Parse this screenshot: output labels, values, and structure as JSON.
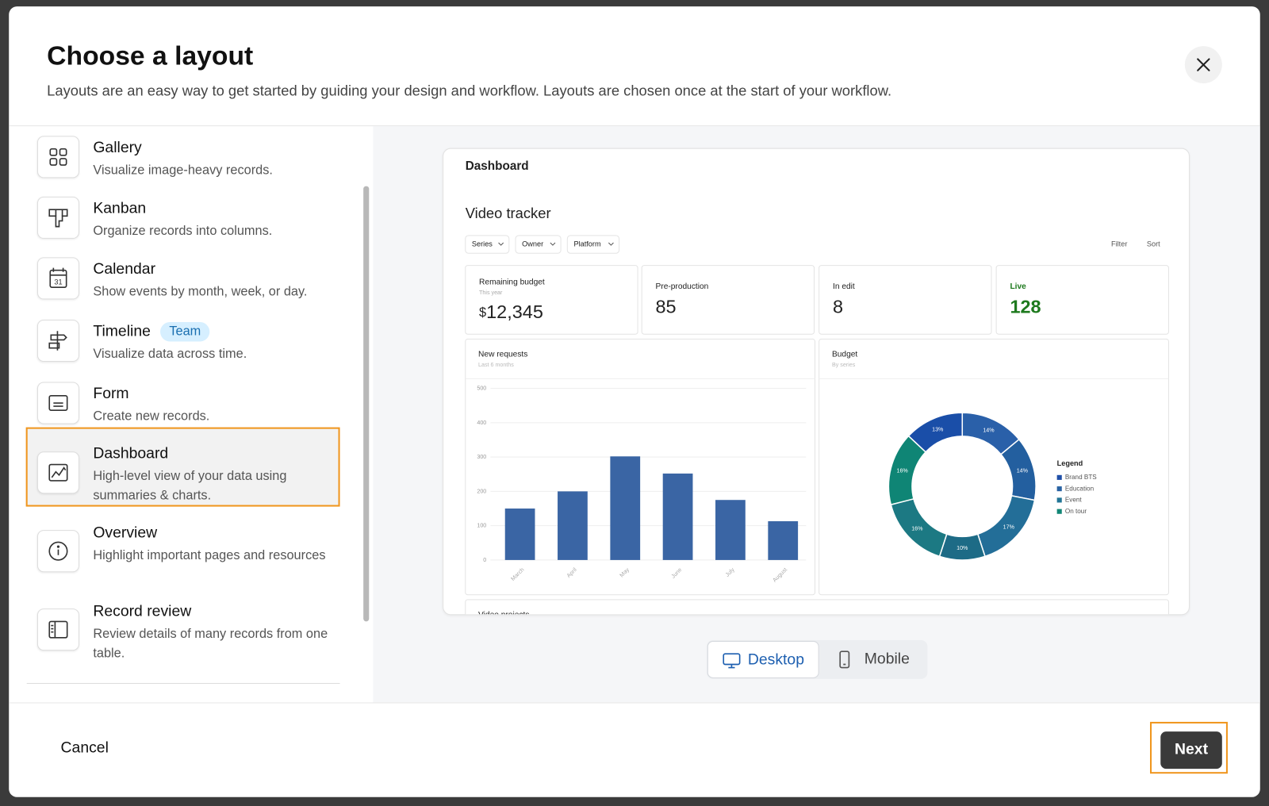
{
  "header": {
    "title": "Choose a layout",
    "subtitle": "Layouts are an easy way to get started by guiding your design and workflow. Layouts are chosen once at the start of your workflow."
  },
  "layouts": [
    {
      "name": "Gallery",
      "description": "Visualize image-heavy records."
    },
    {
      "name": "Kanban",
      "description": "Organize records into columns."
    },
    {
      "name": "Calendar",
      "description": "Show events by month, week, or day."
    },
    {
      "name": "Timeline",
      "badge": "Team",
      "description": "Visualize data across time."
    },
    {
      "name": "Form",
      "description": "Create new records."
    },
    {
      "name": "Dashboard",
      "description": "High-level view of your data using summaries & charts.",
      "selected": true
    },
    {
      "name": "Overview",
      "description": "Highlight important pages and resources"
    },
    {
      "name": "Record review",
      "description": "Review details of many records from one table."
    }
  ],
  "preview": {
    "page": "Dashboard",
    "title": "Video tracker",
    "filters": [
      "Series",
      "Owner",
      "Platform"
    ],
    "actions": [
      "Filter",
      "Sort"
    ],
    "stats": [
      {
        "label": "Remaining budget",
        "sublabel": "This year",
        "prefix": "$",
        "value": "12,345"
      },
      {
        "label": "Pre-production",
        "value": 85
      },
      {
        "label": "In edit",
        "value": 8
      },
      {
        "label": "Live",
        "value": 128,
        "color": "#1e7a1e"
      }
    ],
    "next_section": "Video projects"
  },
  "chart_data": [
    {
      "type": "bar",
      "title": "New requests",
      "subtitle": "Last 6 months",
      "categories": [
        "March",
        "April",
        "May",
        "June",
        "July",
        "August"
      ],
      "values": [
        150,
        200,
        302,
        252,
        175,
        113
      ],
      "color": "#3a65a4",
      "ylim": [
        0,
        500
      ],
      "yticks": [
        0,
        100,
        200,
        300,
        400,
        500
      ],
      "grid": true
    },
    {
      "type": "donut",
      "title": "Budget",
      "subtitle": "By series",
      "values": [
        14,
        14,
        17,
        10,
        16,
        16,
        13
      ],
      "value_labels": [
        "14%",
        "14%",
        "17%",
        "10%",
        "16%",
        "16%",
        "13%"
      ],
      "colors": [
        "#2a60a9",
        "#235f9f",
        "#236e98",
        "#1d6b86",
        "#1c7983",
        "#0f8575",
        "#1a4ea8"
      ],
      "legend_title": "Legend",
      "legend": [
        {
          "name": "Brand BTS",
          "color": "#1f4fa8"
        },
        {
          "name": "Education",
          "color": "#2862a3"
        },
        {
          "name": "Event",
          "color": "#227596"
        },
        {
          "name": "On tour",
          "color": "#128676"
        }
      ]
    }
  ],
  "view_toggle": [
    {
      "label": "Desktop",
      "selected": true
    },
    {
      "label": "Mobile"
    }
  ],
  "footer": {
    "cancel": "Cancel",
    "next": "Next"
  }
}
